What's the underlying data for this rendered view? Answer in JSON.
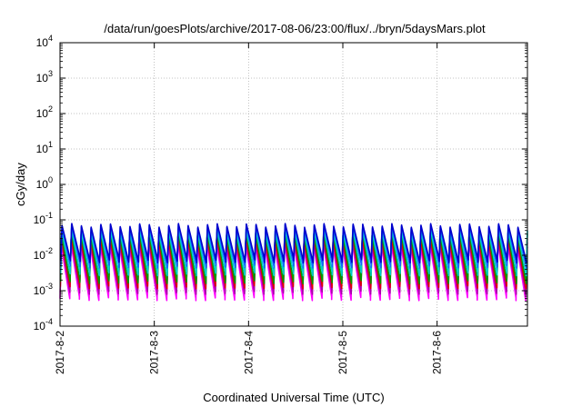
{
  "chart_data": {
    "type": "line",
    "title": "/data/run/goesPlots/archive/2017-08-06/23:00/flux/../bryn/5daysMars.plot",
    "xlabel": "Coordinated Universal Time (UTC)",
    "ylabel": "cGy/day",
    "yscale": "log",
    "ylim": [
      0.0001,
      10000
    ],
    "xlim": [
      "2017-08-02",
      "2017-08-06T23:00"
    ],
    "grid": true,
    "legend": "none",
    "x_ticks": [
      "2017-8-2",
      "2017-8-3",
      "2017-8-4",
      "2017-8-5",
      "2017-8-6"
    ],
    "y_ticks": [
      {
        "base": "10",
        "exp": "-4"
      },
      {
        "base": "10",
        "exp": "-3"
      },
      {
        "base": "10",
        "exp": "-2"
      },
      {
        "base": "10",
        "exp": "-1"
      },
      {
        "base": "10",
        "exp": "0"
      },
      {
        "base": "10",
        "exp": "1"
      },
      {
        "base": "10",
        "exp": "2"
      },
      {
        "base": "10",
        "exp": "3"
      },
      {
        "base": "10",
        "exp": "4"
      }
    ],
    "cycle_period_hours": 2.47,
    "series": [
      {
        "color": "#ff00ff",
        "peak": 0.02,
        "trough": 0.0006
      },
      {
        "color": "#aa00aa",
        "peak": 0.025,
        "trough": 0.0009
      },
      {
        "color": "#dd0000",
        "peak": 0.03,
        "trough": 0.0013
      },
      {
        "color": "#009900",
        "peak": 0.04,
        "trough": 0.0018
      },
      {
        "color": "#00cccc",
        "peak": 0.05,
        "trough": 0.003
      },
      {
        "color": "#1166ff",
        "peak": 0.065,
        "trough": 0.005
      },
      {
        "color": "#0000cc",
        "peak": 0.07,
        "trough": 0.007
      }
    ]
  }
}
